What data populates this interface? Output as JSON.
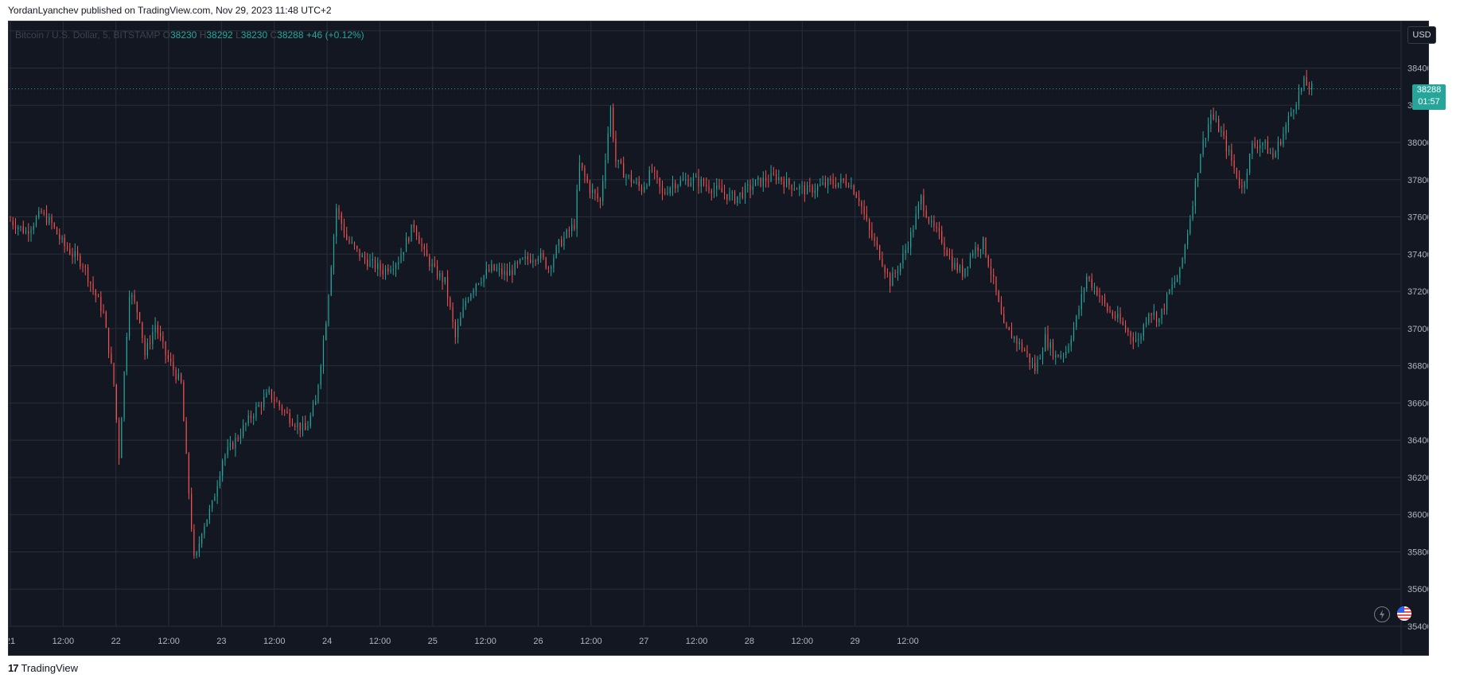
{
  "header": {
    "published_text": "YordanLyanchev published on TradingView.com, Nov 29, 2023 11:48 UTC+2"
  },
  "legend": {
    "symbol": "Bitcoin / U.S. Dollar, 5, BITSTAMP",
    "o_label": "O",
    "o_value": "38230",
    "h_label": "H",
    "h_value": "38292",
    "l_label": "L",
    "l_value": "38230",
    "c_label": "C",
    "c_value": "38288",
    "change": "+46 (+0.12%)"
  },
  "price_scale": {
    "currency": "USD",
    "last_price": "38288",
    "countdown": "01:57"
  },
  "footer": {
    "brand": "TradingView",
    "logo_mark": "17"
  },
  "colors": {
    "background": "#131722",
    "grid": "#2a2e39",
    "up": "#26a69a",
    "down": "#ef5350",
    "axis_text": "#b2b5be"
  },
  "chart_data": {
    "type": "candlestick",
    "title": "Bitcoin / U.S. Dollar, 5, BITSTAMP",
    "ylim": [
      35400,
      38650
    ],
    "y_ticks": [
      38600,
      38400,
      38200,
      38000,
      37800,
      37600,
      37400,
      37200,
      37000,
      36800,
      36600,
      36400,
      36200,
      36000,
      35800,
      35600,
      35400
    ],
    "x_ticks": [
      "21",
      "12:00",
      "22",
      "12:00",
      "23",
      "12:00",
      "24",
      "12:00",
      "25",
      "12:00",
      "26",
      "12:00",
      "27",
      "12:00",
      "28",
      "12:00",
      "29",
      "12:00"
    ],
    "x_range_hours": [
      0,
      204
    ],
    "x_tick_hours": [
      0,
      12,
      24,
      36,
      48,
      60,
      72,
      84,
      96,
      108,
      120,
      132,
      144,
      156,
      168,
      180,
      192,
      204
    ],
    "last_price": 38288,
    "price_path": [
      [
        0,
        37580
      ],
      [
        1.5,
        37520
      ],
      [
        3,
        37620
      ],
      [
        4,
        37560
      ],
      [
        5,
        37460
      ],
      [
        6,
        37400
      ],
      [
        7,
        37350
      ],
      [
        8,
        37210
      ],
      [
        9,
        37080
      ],
      [
        10,
        36700
      ],
      [
        10.5,
        36320
      ],
      [
        11.5,
        37200
      ],
      [
        12.5,
        37060
      ],
      [
        13,
        36860
      ],
      [
        14,
        37020
      ],
      [
        15,
        36860
      ],
      [
        16.5,
        36700
      ],
      [
        17,
        36300
      ],
      [
        17.8,
        35720
      ],
      [
        18.5,
        35920
      ],
      [
        19.5,
        36050
      ],
      [
        20.5,
        36300
      ],
      [
        22,
        36420
      ],
      [
        23.5,
        36550
      ],
      [
        25,
        36650
      ],
      [
        27,
        36520
      ],
      [
        28.5,
        36450
      ],
      [
        29.5,
        36600
      ],
      [
        30.5,
        37050
      ],
      [
        31.5,
        37650
      ],
      [
        32.5,
        37480
      ],
      [
        34,
        37380
      ],
      [
        36,
        37310
      ],
      [
        37.5,
        37370
      ],
      [
        39,
        37560
      ],
      [
        40,
        37400
      ],
      [
        41,
        37310
      ],
      [
        42,
        37250
      ],
      [
        43,
        36950
      ],
      [
        44,
        37150
      ],
      [
        45,
        37250
      ],
      [
        46.5,
        37320
      ],
      [
        48,
        37290
      ],
      [
        49.5,
        37360
      ],
      [
        51,
        37400
      ],
      [
        52,
        37330
      ],
      [
        53,
        37450
      ],
      [
        54.5,
        37560
      ],
      [
        55,
        37880
      ],
      [
        56,
        37750
      ],
      [
        57,
        37680
      ],
      [
        58,
        38180
      ],
      [
        58.5,
        37900
      ],
      [
        59.5,
        37820
      ],
      [
        61,
        37750
      ],
      [
        62,
        37850
      ],
      [
        63,
        37720
      ],
      [
        64,
        37780
      ],
      [
        66,
        37800
      ],
      [
        68,
        37750
      ],
      [
        70,
        37700
      ],
      [
        72,
        37780
      ],
      [
        74,
        37820
      ],
      [
        75,
        37780
      ],
      [
        77,
        37740
      ],
      [
        79,
        37780
      ],
      [
        81,
        37790
      ],
      [
        82,
        37700
      ],
      [
        83,
        37520
      ],
      [
        84,
        37400
      ],
      [
        85,
        37250
      ],
      [
        86,
        37350
      ],
      [
        87,
        37500
      ],
      [
        88,
        37700
      ],
      [
        89,
        37550
      ],
      [
        90,
        37480
      ],
      [
        91,
        37350
      ],
      [
        92,
        37300
      ],
      [
        93,
        37420
      ],
      [
        94,
        37460
      ],
      [
        95,
        37250
      ],
      [
        96,
        37000
      ],
      [
        97,
        36950
      ],
      [
        98,
        36880
      ],
      [
        99,
        36780
      ],
      [
        100,
        36950
      ],
      [
        101,
        36850
      ],
      [
        102,
        36880
      ],
      [
        103,
        37050
      ],
      [
        104,
        37280
      ],
      [
        105,
        37200
      ],
      [
        106,
        37100
      ],
      [
        107,
        37050
      ],
      [
        108,
        36980
      ],
      [
        109,
        36930
      ],
      [
        110,
        37100
      ],
      [
        111,
        37050
      ],
      [
        112,
        37200
      ],
      [
        113,
        37300
      ],
      [
        114,
        37600
      ],
      [
        115,
        37950
      ],
      [
        116,
        38150
      ],
      [
        117,
        38050
      ],
      [
        118,
        37900
      ],
      [
        119,
        37750
      ],
      [
        120,
        37980
      ],
      [
        121,
        38000
      ],
      [
        122,
        37920
      ],
      [
        123,
        38050
      ],
      [
        124,
        38200
      ],
      [
        125,
        38320
      ],
      [
        125.8,
        38288
      ]
    ],
    "x_scale_hours_total": 133
  }
}
